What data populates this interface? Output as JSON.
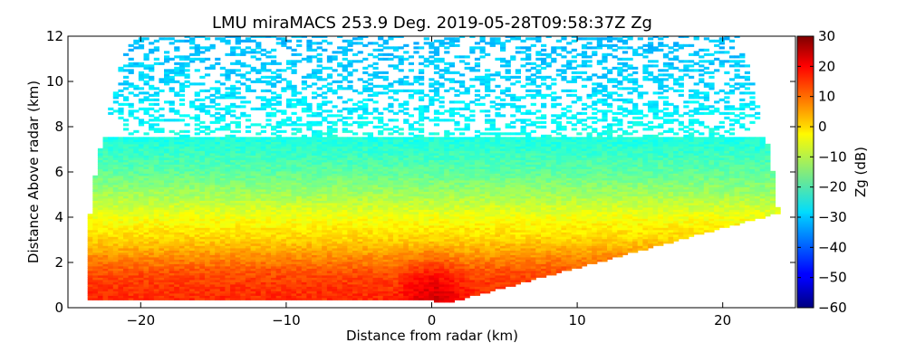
{
  "chart_data": {
    "type": "heatmap",
    "title": "LMU miraMACS 253.9 Deg. 2019-05-28T09:58:37Z  Zg",
    "xlabel": "Distance from radar (km)",
    "ylabel": "Distance Above radar  (km)",
    "xlim": [
      -25,
      25
    ],
    "ylim": [
      0,
      12
    ],
    "xticks": [
      -20,
      -10,
      0,
      10,
      20
    ],
    "yticks": [
      0,
      2,
      4,
      6,
      8,
      10,
      12
    ],
    "colorbar": {
      "label": "Zg (dB)",
      "range": [
        -60,
        30
      ],
      "ticks": [
        30,
        20,
        10,
        0,
        -10,
        -20,
        -30,
        -40,
        -50,
        -60
      ],
      "colormap": "jet"
    },
    "grid": false,
    "scan": {
      "type": "RHI",
      "azimuth_deg": 253.9,
      "max_range_km": 24
    },
    "reflectivity_profile": {
      "height_km": [
        0.5,
        1.0,
        1.5,
        2.0,
        3.0,
        4.0,
        5.0,
        6.0,
        7.0,
        8.0,
        10.0,
        12.0
      ],
      "zg_db": [
        15,
        14,
        12,
        8,
        0,
        -5,
        -12,
        -18,
        -22,
        -26,
        -30,
        -32
      ]
    }
  }
}
